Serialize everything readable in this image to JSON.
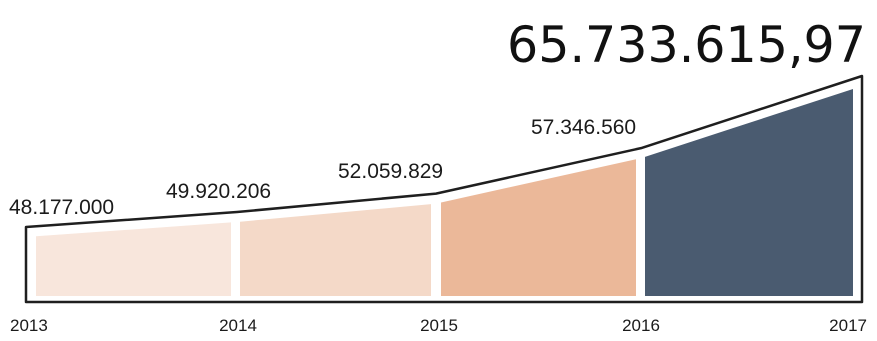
{
  "chart_data": {
    "type": "area",
    "title": "",
    "xlabel": "",
    "ylabel": "",
    "categories": [
      "2013",
      "2014",
      "2015",
      "2016",
      "2017"
    ],
    "values": [
      48177000,
      49920206,
      52059829,
      57346560,
      65733615.97
    ],
    "value_labels": [
      "48.177.000",
      "49.920.206",
      "52.059.829",
      "57.346.560",
      "65.733.615,97"
    ],
    "segment_colors": [
      "#f8e6dc",
      "#f4d9c8",
      "#f1d2bd",
      "#ebb899",
      "#4a5b70"
    ],
    "outline_color": "#1f1f1f",
    "grid": false,
    "legend": "none"
  }
}
